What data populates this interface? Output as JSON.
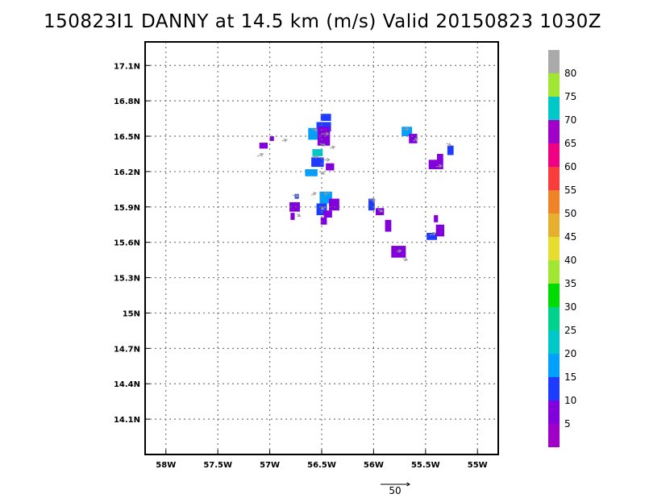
{
  "title": "150823I1 DANNY at 14.5 km (m/s) Valid 20150823 1030Z",
  "map": {
    "lon_range": [
      -58.2,
      -54.8
    ],
    "lat_range": [
      13.8,
      17.3
    ],
    "x_ticks": [
      {
        "value": -58.0,
        "label": "58W"
      },
      {
        "value": -57.5,
        "label": "57.5W"
      },
      {
        "value": -57.0,
        "label": "57W"
      },
      {
        "value": -56.5,
        "label": "56.5W"
      },
      {
        "value": -56.0,
        "label": "56W"
      },
      {
        "value": -55.5,
        "label": "55.5W"
      },
      {
        "value": -55.0,
        "label": "55W"
      }
    ],
    "y_ticks": [
      {
        "value": 17.1,
        "label": "17.1N"
      },
      {
        "value": 16.8,
        "label": "16.8N"
      },
      {
        "value": 16.5,
        "label": "16.5N"
      },
      {
        "value": 16.2,
        "label": "16.2N"
      },
      {
        "value": 15.9,
        "label": "15.9N"
      },
      {
        "value": 15.6,
        "label": "15.6N"
      },
      {
        "value": 15.3,
        "label": "15.3N"
      },
      {
        "value": 15.0,
        "label": "15N"
      },
      {
        "value": 14.7,
        "label": "14.7N"
      },
      {
        "value": 14.4,
        "label": "14.4N"
      },
      {
        "value": 14.1,
        "label": "14.1N"
      }
    ],
    "grid": true,
    "cells": [
      {
        "lon": -56.46,
        "lat": 16.66,
        "w": 0.1,
        "h": 0.06,
        "v": 12
      },
      {
        "lon": -56.48,
        "lat": 16.58,
        "w": 0.14,
        "h": 0.08,
        "v": 12
      },
      {
        "lon": -56.58,
        "lat": 16.52,
        "w": 0.1,
        "h": 0.1,
        "v": 18
      },
      {
        "lon": -56.48,
        "lat": 16.5,
        "w": 0.12,
        "h": 0.16,
        "v": 8
      },
      {
        "lon": -56.54,
        "lat": 16.36,
        "w": 0.1,
        "h": 0.06,
        "v": 20
      },
      {
        "lon": -56.54,
        "lat": 16.28,
        "w": 0.12,
        "h": 0.08,
        "v": 12
      },
      {
        "lon": -56.42,
        "lat": 16.24,
        "w": 0.08,
        "h": 0.06,
        "v": 6
      },
      {
        "lon": -56.6,
        "lat": 16.19,
        "w": 0.12,
        "h": 0.06,
        "v": 18
      },
      {
        "lon": -57.06,
        "lat": 16.42,
        "w": 0.08,
        "h": 0.05,
        "v": 6
      },
      {
        "lon": -56.98,
        "lat": 16.48,
        "w": 0.04,
        "h": 0.04,
        "v": 6
      },
      {
        "lon": -56.46,
        "lat": 15.98,
        "w": 0.12,
        "h": 0.1,
        "v": 18
      },
      {
        "lon": -56.5,
        "lat": 15.88,
        "w": 0.1,
        "h": 0.1,
        "v": 12
      },
      {
        "lon": -56.38,
        "lat": 15.92,
        "w": 0.1,
        "h": 0.1,
        "v": 8
      },
      {
        "lon": -56.44,
        "lat": 15.84,
        "w": 0.08,
        "h": 0.06,
        "v": 6
      },
      {
        "lon": -56.48,
        "lat": 15.78,
        "w": 0.06,
        "h": 0.06,
        "v": 8
      },
      {
        "lon": -56.76,
        "lat": 15.9,
        "w": 0.1,
        "h": 0.08,
        "v": 6
      },
      {
        "lon": -56.74,
        "lat": 15.99,
        "w": 0.04,
        "h": 0.04,
        "v": 12
      },
      {
        "lon": -56.78,
        "lat": 15.82,
        "w": 0.04,
        "h": 0.06,
        "v": 6
      },
      {
        "lon": -56.02,
        "lat": 15.92,
        "w": 0.06,
        "h": 0.1,
        "v": 12
      },
      {
        "lon": -55.94,
        "lat": 15.86,
        "w": 0.08,
        "h": 0.06,
        "v": 6
      },
      {
        "lon": -55.86,
        "lat": 15.74,
        "w": 0.06,
        "h": 0.1,
        "v": 6
      },
      {
        "lon": -55.76,
        "lat": 15.52,
        "w": 0.14,
        "h": 0.1,
        "v": 6
      },
      {
        "lon": -55.68,
        "lat": 16.54,
        "w": 0.1,
        "h": 0.08,
        "v": 18
      },
      {
        "lon": -55.62,
        "lat": 16.48,
        "w": 0.08,
        "h": 0.08,
        "v": 6
      },
      {
        "lon": -55.26,
        "lat": 16.38,
        "w": 0.06,
        "h": 0.08,
        "v": 12
      },
      {
        "lon": -55.4,
        "lat": 16.26,
        "w": 0.14,
        "h": 0.08,
        "v": 6
      },
      {
        "lon": -55.36,
        "lat": 16.32,
        "w": 0.06,
        "h": 0.06,
        "v": 6
      },
      {
        "lon": -55.44,
        "lat": 15.65,
        "w": 0.1,
        "h": 0.06,
        "v": 12
      },
      {
        "lon": -55.36,
        "lat": 15.7,
        "w": 0.08,
        "h": 0.1,
        "v": 6
      },
      {
        "lon": -55.4,
        "lat": 15.8,
        "w": 0.04,
        "h": 0.06,
        "v": 6
      }
    ],
    "vectors": [
      {
        "lon": -57.12,
        "lat": 16.33,
        "u": 5,
        "v": 2
      },
      {
        "lon": -56.88,
        "lat": 16.46,
        "u": 4,
        "v": 1
      },
      {
        "lon": -56.6,
        "lat": 16.56,
        "u": 5,
        "v": -1
      },
      {
        "lon": -56.5,
        "lat": 16.52,
        "u": 6,
        "v": 0
      },
      {
        "lon": -56.52,
        "lat": 16.44,
        "u": 5,
        "v": -2
      },
      {
        "lon": -56.6,
        "lat": 16.32,
        "u": 6,
        "v": 1
      },
      {
        "lon": -56.48,
        "lat": 16.3,
        "u": 5,
        "v": 0
      },
      {
        "lon": -56.52,
        "lat": 16.2,
        "u": 4,
        "v": -2
      },
      {
        "lon": -56.42,
        "lat": 16.4,
        "u": 4,
        "v": 1
      },
      {
        "lon": -56.78,
        "lat": 16.0,
        "u": 5,
        "v": -1
      },
      {
        "lon": -56.6,
        "lat": 16.0,
        "u": 4,
        "v": 2
      },
      {
        "lon": -56.46,
        "lat": 15.9,
        "u": -4,
        "v": -2
      },
      {
        "lon": -56.42,
        "lat": 16.02,
        "u": -5,
        "v": -1
      },
      {
        "lon": -56.74,
        "lat": 15.84,
        "u": 3,
        "v": -2
      },
      {
        "lon": -56.04,
        "lat": 15.96,
        "u": 5,
        "v": 0
      },
      {
        "lon": -55.96,
        "lat": 15.88,
        "u": 4,
        "v": -2
      },
      {
        "lon": -55.72,
        "lat": 16.56,
        "u": 5,
        "v": 0
      },
      {
        "lon": -55.62,
        "lat": 16.46,
        "u": 4,
        "v": 2
      },
      {
        "lon": -55.4,
        "lat": 16.24,
        "u": 5,
        "v": 1
      },
      {
        "lon": -55.3,
        "lat": 16.44,
        "u": 4,
        "v": -2
      },
      {
        "lon": -55.46,
        "lat": 15.66,
        "u": 5,
        "v": 2
      },
      {
        "lon": -55.78,
        "lat": 15.52,
        "u": 4,
        "v": 1
      },
      {
        "lon": -55.72,
        "lat": 15.46,
        "u": 4,
        "v": -1
      }
    ]
  },
  "colorbar": {
    "colors": [
      "#a000c8",
      "#8200dc",
      "#1e3cff",
      "#00a0ff",
      "#00c8c8",
      "#00d28c",
      "#00dc00",
      "#a0e632",
      "#e6dc32",
      "#e6af2d",
      "#f08228",
      "#fa3c3c",
      "#f00082",
      "#a000c8",
      "#00c8c8",
      "#a0e632",
      "#aaaaaa"
    ],
    "labels": [
      "5",
      "10",
      "15",
      "20",
      "25",
      "30",
      "35",
      "40",
      "45",
      "50",
      "55",
      "60",
      "65",
      "70",
      "75",
      "80"
    ]
  },
  "reference_vector": {
    "label": "50"
  }
}
